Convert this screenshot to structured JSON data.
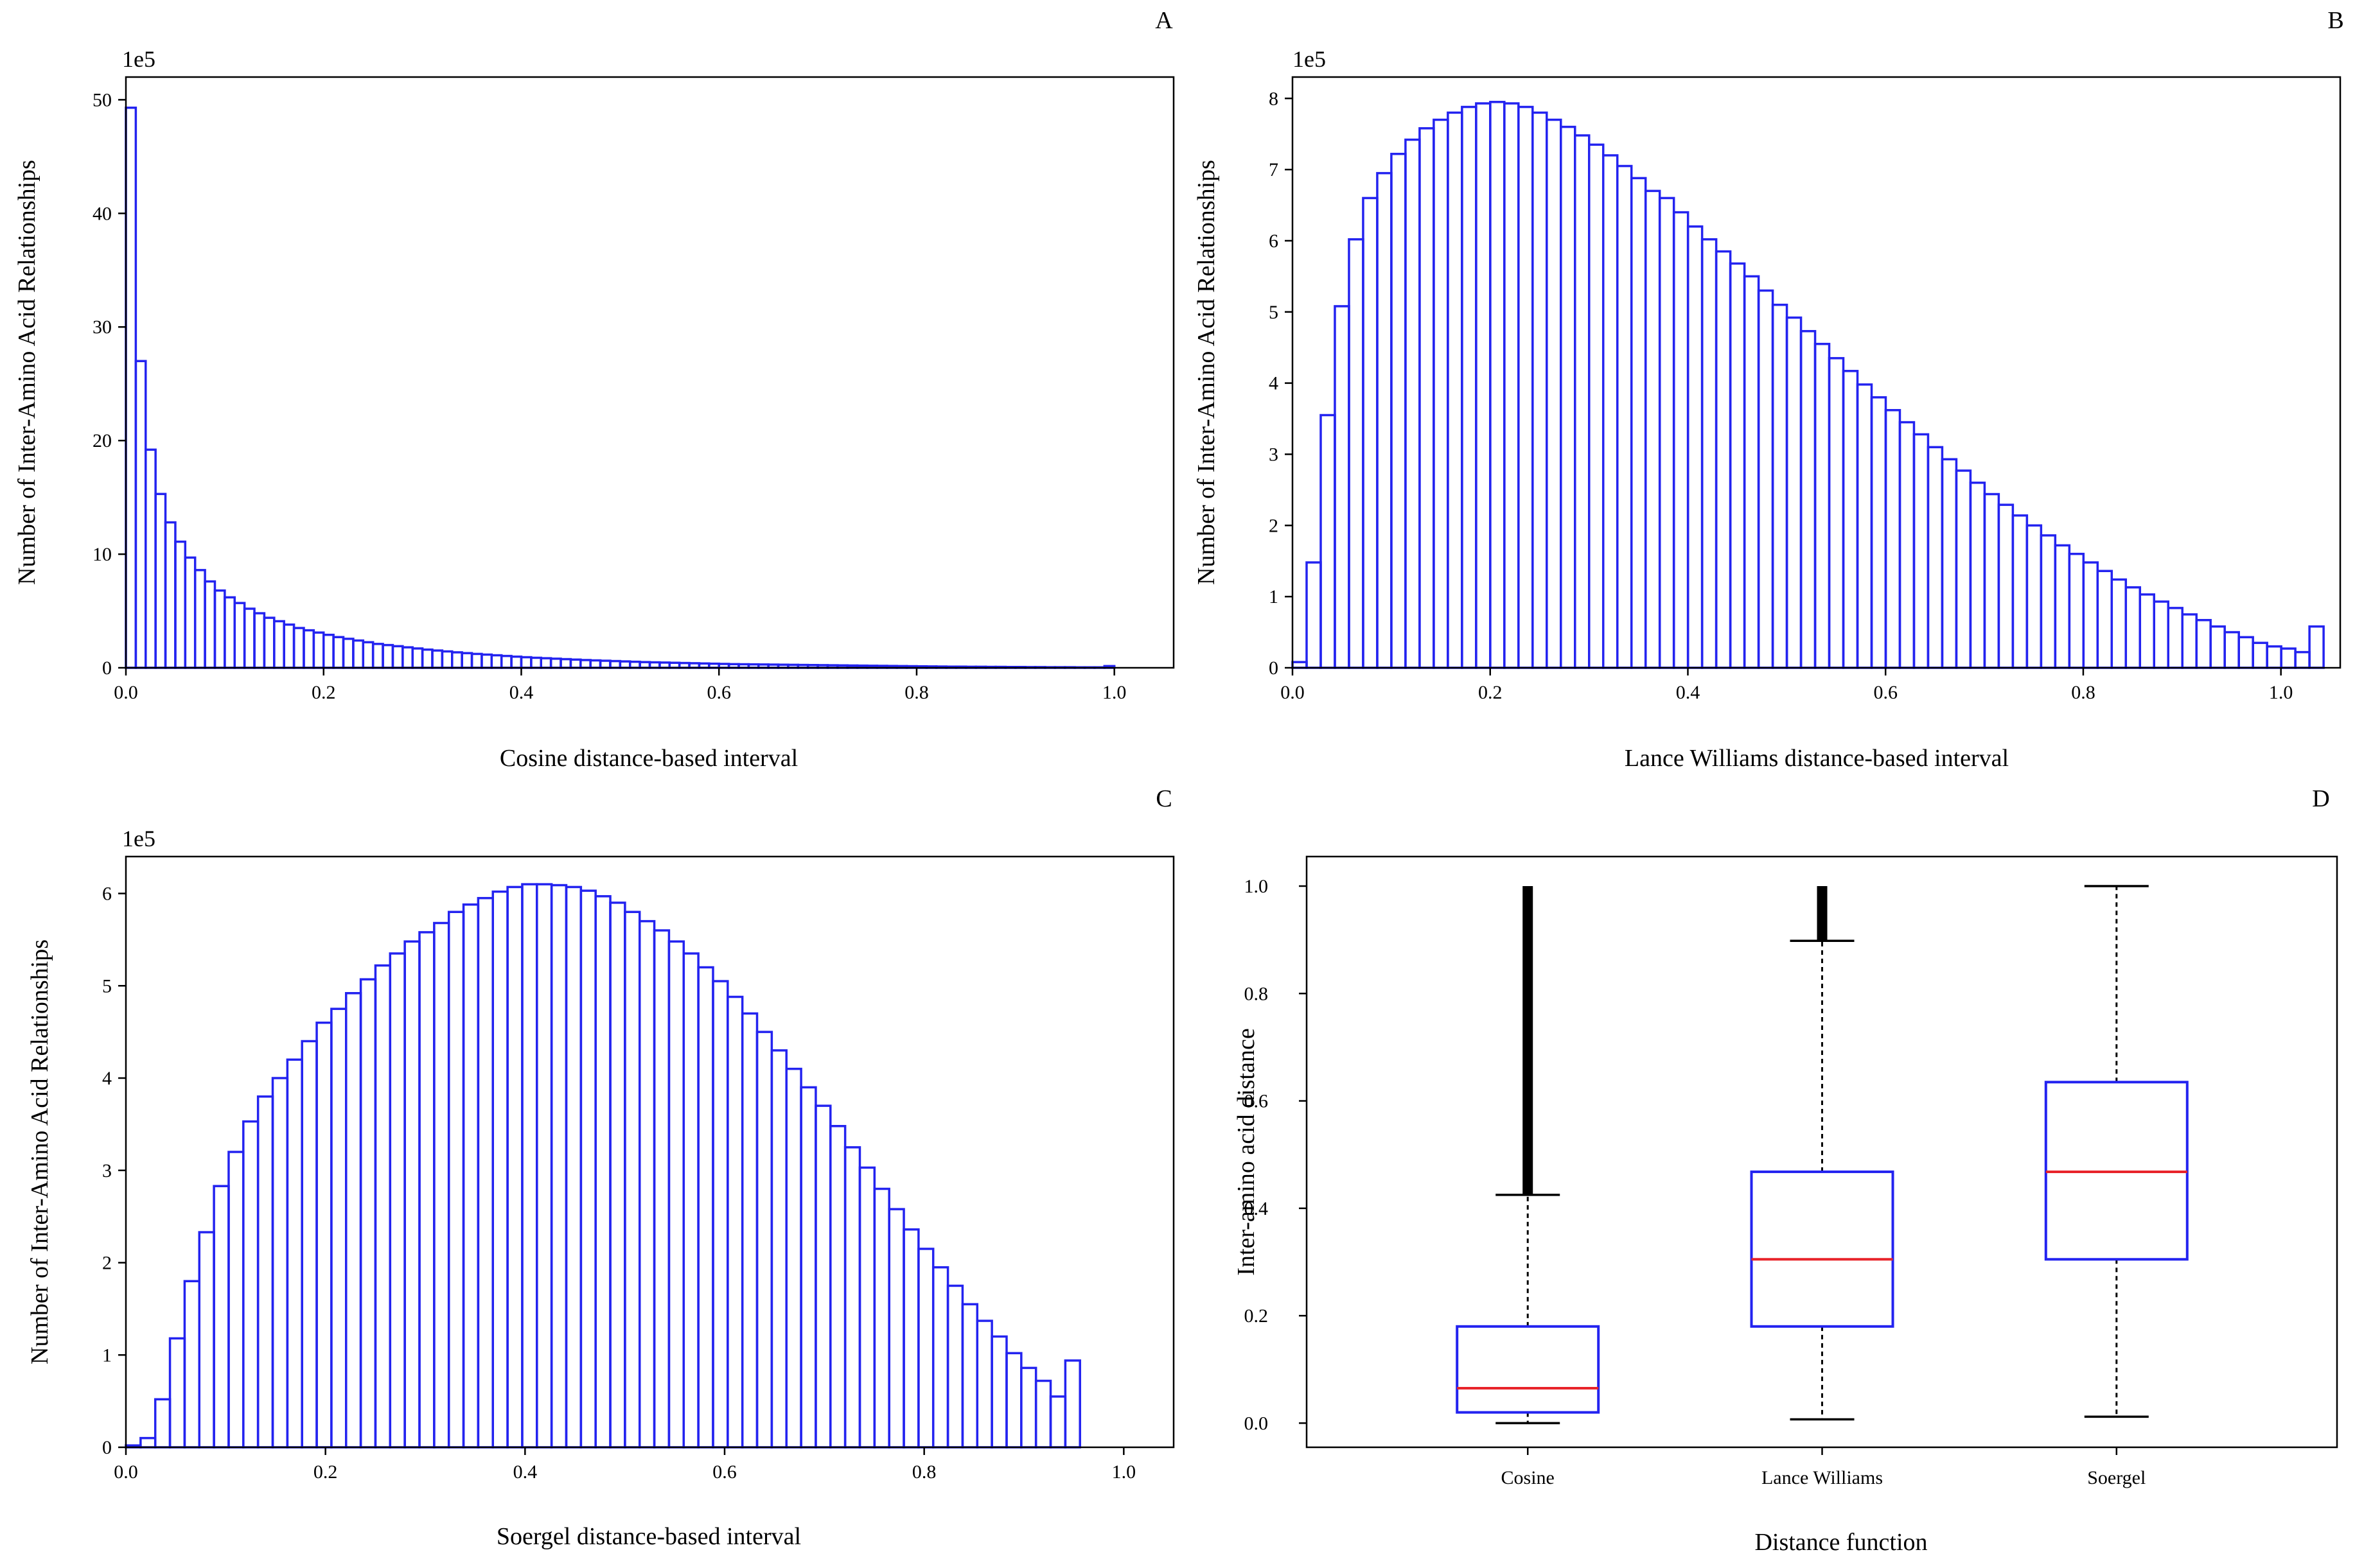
{
  "chart_data": [
    {
      "panel": "A",
      "type": "bar",
      "title": "",
      "xlabel": "Cosine distance-based interval",
      "ylabel": "Number of Inter-Amino Acid Relationships",
      "y_offset_label": "1e5",
      "xlim": [
        0.0,
        1.06
      ],
      "ylim": [
        0,
        52
      ],
      "bin_width": 0.01,
      "x_ticks": [
        0.0,
        0.2,
        0.4,
        0.6,
        0.8,
        1.0
      ],
      "x_tick_labels": [
        "0.0",
        "0.2",
        "0.4",
        "0.6",
        "0.8",
        "1.0"
      ],
      "y_ticks": [
        0,
        10,
        20,
        30,
        40,
        50
      ],
      "y_tick_labels": [
        "0",
        "10",
        "20",
        "30",
        "40",
        "50"
      ],
      "values": [
        49.3,
        27.0,
        19.2,
        15.3,
        12.8,
        11.1,
        9.7,
        8.6,
        7.6,
        6.8,
        6.2,
        5.7,
        5.2,
        4.8,
        4.4,
        4.1,
        3.8,
        3.5,
        3.3,
        3.1,
        2.9,
        2.7,
        2.55,
        2.4,
        2.25,
        2.1,
        2.0,
        1.9,
        1.8,
        1.7,
        1.6,
        1.52,
        1.44,
        1.36,
        1.29,
        1.22,
        1.16,
        1.1,
        1.04,
        0.98,
        0.93,
        0.88,
        0.84,
        0.8,
        0.76,
        0.72,
        0.68,
        0.65,
        0.62,
        0.59,
        0.56,
        0.53,
        0.5,
        0.48,
        0.46,
        0.44,
        0.42,
        0.4,
        0.38,
        0.36,
        0.34,
        0.32,
        0.31,
        0.3,
        0.29,
        0.28,
        0.27,
        0.26,
        0.25,
        0.24,
        0.23,
        0.22,
        0.21,
        0.2,
        0.19,
        0.18,
        0.17,
        0.16,
        0.15,
        0.14,
        0.13,
        0.12,
        0.11,
        0.1,
        0.1,
        0.09,
        0.09,
        0.08,
        0.08,
        0.07,
        0.07,
        0.06,
        0.06,
        0.05,
        0.05,
        0.05,
        0.04,
        0.04,
        0.04,
        0.15
      ]
    },
    {
      "panel": "B",
      "type": "bar",
      "title": "",
      "xlabel": "Lance Williams distance-based interval",
      "ylabel": "Number of Inter-Amino Acid Relationships",
      "y_offset_label": "1e5",
      "xlim": [
        0.0,
        1.06
      ],
      "ylim": [
        0,
        8.3
      ],
      "bin_width": 0.01429,
      "x_ticks": [
        0.0,
        0.2,
        0.4,
        0.6,
        0.8,
        1.0
      ],
      "x_tick_labels": [
        "0.0",
        "0.2",
        "0.4",
        "0.6",
        "0.8",
        "1.0"
      ],
      "y_ticks": [
        0,
        1,
        2,
        3,
        4,
        5,
        6,
        7,
        8
      ],
      "y_tick_labels": [
        "0",
        "1",
        "2",
        "3",
        "4",
        "5",
        "6",
        "7",
        "8"
      ],
      "values": [
        0.08,
        1.48,
        3.55,
        5.08,
        6.02,
        6.6,
        6.95,
        7.22,
        7.42,
        7.58,
        7.7,
        7.8,
        7.88,
        7.93,
        7.95,
        7.93,
        7.88,
        7.8,
        7.7,
        7.6,
        7.48,
        7.35,
        7.2,
        7.05,
        6.88,
        6.7,
        6.6,
        6.4,
        6.2,
        6.02,
        5.85,
        5.68,
        5.5,
        5.3,
        5.1,
        4.92,
        4.73,
        4.55,
        4.35,
        4.17,
        3.98,
        3.8,
        3.62,
        3.45,
        3.28,
        3.1,
        2.93,
        2.77,
        2.6,
        2.44,
        2.29,
        2.14,
        2.0,
        1.86,
        1.72,
        1.6,
        1.48,
        1.36,
        1.24,
        1.13,
        1.03,
        0.93,
        0.84,
        0.75,
        0.67,
        0.58,
        0.5,
        0.43,
        0.35,
        0.3,
        0.27,
        0.22,
        0.58
      ]
    },
    {
      "panel": "C",
      "type": "bar",
      "title": "",
      "xlabel": "Soergel distance-based interval",
      "ylabel": "Number of Inter-Amino Acid Relationships",
      "y_offset_label": "1e5",
      "xlim": [
        0.0,
        1.05
      ],
      "ylim": [
        0,
        6.4
      ],
      "bin_width": 0.01471,
      "x_ticks": [
        0.0,
        0.2,
        0.4,
        0.6,
        0.8,
        1.0
      ],
      "x_tick_labels": [
        "0.0",
        "0.2",
        "0.4",
        "0.6",
        "0.8",
        "1.0"
      ],
      "y_ticks": [
        0,
        1,
        2,
        3,
        4,
        5,
        6
      ],
      "y_tick_labels": [
        "0",
        "1",
        "2",
        "3",
        "4",
        "5",
        "6"
      ],
      "values": [
        0.02,
        0.1,
        0.52,
        1.18,
        1.8,
        2.33,
        2.83,
        3.2,
        3.53,
        3.8,
        4.0,
        4.2,
        4.4,
        4.6,
        4.75,
        4.92,
        5.07,
        5.22,
        5.35,
        5.48,
        5.58,
        5.68,
        5.8,
        5.88,
        5.95,
        6.02,
        6.07,
        6.1,
        6.1,
        6.09,
        6.07,
        6.03,
        5.97,
        5.9,
        5.8,
        5.7,
        5.6,
        5.48,
        5.35,
        5.2,
        5.05,
        4.88,
        4.7,
        4.5,
        4.3,
        4.1,
        3.9,
        3.7,
        3.48,
        3.25,
        3.03,
        2.8,
        2.58,
        2.36,
        2.15,
        1.95,
        1.75,
        1.55,
        1.37,
        1.2,
        1.02,
        0.86,
        0.72,
        0.55,
        0.94
      ]
    },
    {
      "panel": "D",
      "type": "box",
      "title": "",
      "xlabel": "Distance function",
      "ylabel": "Inter-amino acid distance",
      "ylim": [
        -0.045,
        1.055
      ],
      "y_ticks": [
        0.0,
        0.2,
        0.4,
        0.6,
        0.8,
        1.0
      ],
      "y_tick_labels": [
        "0.0",
        "0.2",
        "0.4",
        "0.6",
        "0.8",
        "1.0"
      ],
      "categories": [
        "Cosine",
        "Lance Williams",
        "Soergel"
      ],
      "boxes": [
        {
          "name": "Cosine",
          "whislo": 0.0,
          "q1": 0.02,
          "med": 0.065,
          "q3": 0.18,
          "whishi": 0.425,
          "outliers_from": 0.425,
          "outliers_to": 1.0
        },
        {
          "name": "Lance Williams",
          "whislo": 0.007,
          "q1": 0.18,
          "med": 0.305,
          "q3": 0.468,
          "whishi": 0.898,
          "outliers_from": 0.898,
          "outliers_to": 1.0
        },
        {
          "name": "Soergel",
          "whislo": 0.012,
          "q1": 0.305,
          "med": 0.468,
          "q3": 0.635,
          "whishi": 1.0,
          "outliers_from": null,
          "outliers_to": null
        }
      ]
    }
  ]
}
